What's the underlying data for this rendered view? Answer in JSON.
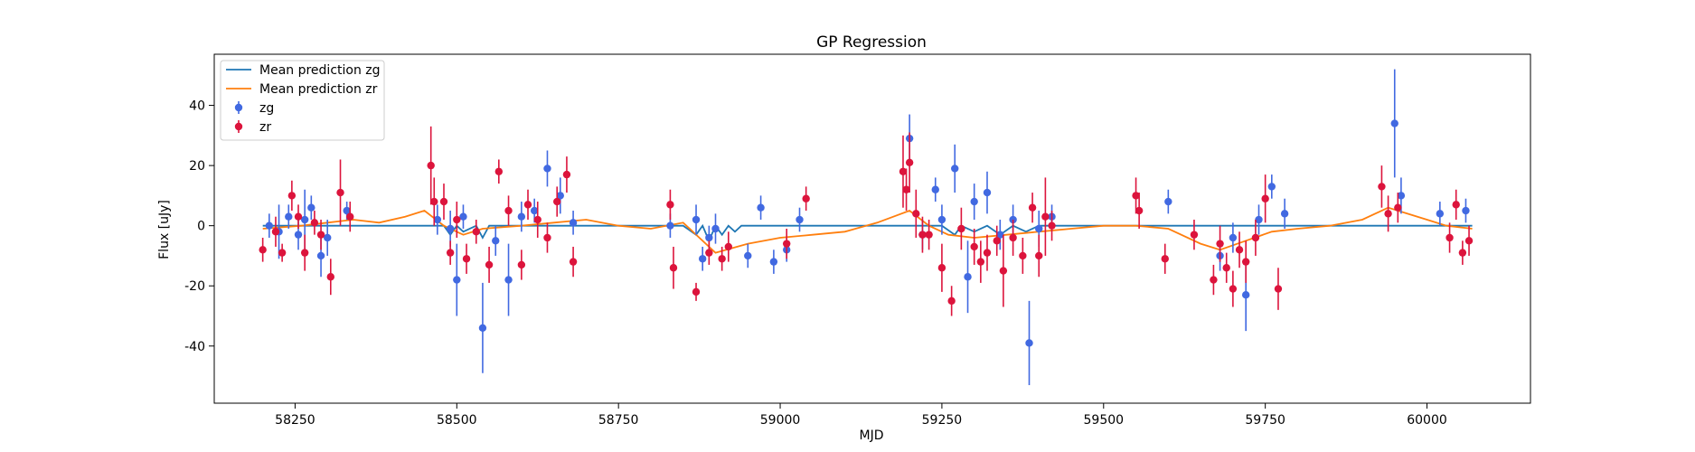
{
  "chart_data": {
    "type": "scatter",
    "title": "GP Regression",
    "xlabel": "MJD",
    "ylabel": "Flux [uJy]",
    "xlim": [
      58125,
      60160
    ],
    "ylim": [
      -59,
      57
    ],
    "xticks": [
      58250,
      58500,
      58750,
      59000,
      59250,
      59500,
      59750,
      60000
    ],
    "yticks": [
      -40,
      -20,
      0,
      20,
      40
    ],
    "grid": false,
    "legend_position": "top-left",
    "series": [
      {
        "name": "Mean prediction zg",
        "kind": "line",
        "color": "#1f77b4",
        "x": [
          58200,
          58350,
          58480,
          58490,
          58500,
          58510,
          58530,
          58540,
          58550,
          58560,
          58700,
          58850,
          58870,
          58880,
          58890,
          58900,
          58910,
          58920,
          58930,
          58940,
          58950,
          59050,
          59250,
          59270,
          59280,
          59300,
          59320,
          59340,
          59360,
          59380,
          59400,
          59600,
          59700,
          59780,
          59790,
          60000,
          60020,
          60040,
          60070
        ],
        "y": [
          0,
          0,
          0,
          -3,
          0,
          -2,
          0,
          -4,
          0,
          0,
          0,
          0,
          -3,
          0,
          -5,
          0,
          -3,
          0,
          -2,
          0,
          0,
          0,
          0,
          -3,
          0,
          -2,
          0,
          -3,
          0,
          -2,
          0,
          0,
          0,
          0,
          0,
          0,
          0,
          0,
          0
        ]
      },
      {
        "name": "Mean prediction zr",
        "kind": "line",
        "color": "#ff7f0e",
        "x": [
          58200,
          58260,
          58300,
          58340,
          58380,
          58420,
          58450,
          58480,
          58510,
          58540,
          58600,
          58650,
          58700,
          58750,
          58800,
          58850,
          58900,
          58950,
          59000,
          59050,
          59100,
          59150,
          59200,
          59230,
          59260,
          59300,
          59350,
          59400,
          59450,
          59500,
          59550,
          59600,
          59650,
          59680,
          59720,
          59760,
          59800,
          59850,
          59900,
          59940,
          59970,
          60000,
          60030,
          60070
        ],
        "y": [
          -1,
          0,
          1,
          2,
          1,
          3,
          5,
          0,
          -3,
          -1,
          0,
          1,
          2,
          0,
          -1,
          1,
          -9,
          -6,
          -4,
          -3,
          -2,
          1,
          5,
          0,
          -3,
          -4,
          -3,
          -2,
          -1,
          0,
          0,
          -1,
          -6,
          -8,
          -5,
          -2,
          -1,
          0,
          2,
          6,
          4,
          2,
          0,
          -1
        ]
      },
      {
        "name": "zg",
        "kind": "errorbar",
        "color": "#4169e1",
        "x": [
          58210,
          58225,
          58240,
          58255,
          58265,
          58275,
          58290,
          58300,
          58330,
          58470,
          58490,
          58500,
          58510,
          58540,
          58560,
          58580,
          58600,
          58620,
          58640,
          58660,
          58680,
          58830,
          58870,
          58880,
          58890,
          58900,
          58950,
          58970,
          58990,
          59010,
          59030,
          59200,
          59220,
          59240,
          59250,
          59270,
          59290,
          59300,
          59320,
          59340,
          59360,
          59385,
          59400,
          59420,
          59600,
          59680,
          59700,
          59720,
          59740,
          59760,
          59780,
          59950,
          59960,
          60020,
          60060
        ],
        "y": [
          0,
          -2,
          3,
          -3,
          2,
          6,
          -10,
          -4,
          5,
          2,
          -1,
          -18,
          3,
          -34,
          -5,
          -18,
          3,
          5,
          19,
          10,
          1,
          0,
          2,
          -11,
          -4,
          -1,
          -10,
          6,
          -12,
          -8,
          2,
          29,
          -3,
          12,
          2,
          19,
          -17,
          8,
          11,
          -3,
          2,
          -39,
          -1,
          3,
          8,
          -10,
          -4,
          -23,
          2,
          13,
          4,
          34,
          10,
          4,
          5
        ],
        "err": [
          4,
          9,
          4,
          5,
          10,
          4,
          7,
          6,
          3,
          5,
          6,
          12,
          4,
          15,
          5,
          12,
          5,
          4,
          6,
          6,
          4,
          4,
          5,
          4,
          4,
          5,
          4,
          4,
          4,
          4,
          4,
          8,
          5,
          4,
          5,
          8,
          12,
          6,
          7,
          5,
          5,
          14,
          6,
          4,
          4,
          5,
          5,
          12,
          5,
          4,
          5,
          18,
          6,
          4,
          4
        ]
      },
      {
        "name": "zr",
        "kind": "errorbar",
        "color": "#dc143c",
        "x": [
          58200,
          58220,
          58230,
          58245,
          58255,
          58265,
          58280,
          58290,
          58305,
          58320,
          58335,
          58460,
          58465,
          58480,
          58490,
          58500,
          58515,
          58530,
          58550,
          58565,
          58580,
          58600,
          58610,
          58625,
          58640,
          58655,
          58670,
          58680,
          58830,
          58835,
          58870,
          58890,
          58910,
          58920,
          59010,
          59040,
          59190,
          59195,
          59200,
          59210,
          59220,
          59230,
          59250,
          59265,
          59280,
          59300,
          59310,
          59320,
          59335,
          59345,
          59360,
          59375,
          59390,
          59400,
          59410,
          59420,
          59550,
          59555,
          59595,
          59640,
          59670,
          59680,
          59690,
          59700,
          59710,
          59720,
          59735,
          59750,
          59770,
          59930,
          59940,
          59955,
          60035,
          60045,
          60055,
          60065
        ],
        "y": [
          -8,
          -2,
          -9,
          10,
          3,
          -9,
          1,
          -3,
          -17,
          11,
          3,
          20,
          8,
          8,
          -9,
          2,
          -11,
          -2,
          -13,
          18,
          5,
          -13,
          7,
          2,
          -4,
          8,
          17,
          -12,
          7,
          -14,
          -22,
          -9,
          -11,
          -7,
          -6,
          9,
          18,
          12,
          21,
          4,
          -3,
          -3,
          -14,
          -25,
          -1,
          -7,
          -12,
          -9,
          -5,
          -15,
          -4,
          -10,
          6,
          -10,
          3,
          0,
          10,
          5,
          -11,
          -3,
          -18,
          -6,
          -14,
          -21,
          -8,
          -12,
          -4,
          9,
          -21,
          13,
          4,
          6,
          -4,
          7,
          -9,
          -5
        ],
        "err": [
          4,
          5,
          3,
          5,
          4,
          6,
          4,
          5,
          6,
          11,
          5,
          13,
          8,
          6,
          4,
          6,
          5,
          4,
          6,
          4,
          5,
          5,
          5,
          6,
          5,
          5,
          6,
          5,
          5,
          7,
          3,
          4,
          4,
          5,
          5,
          4,
          12,
          7,
          10,
          8,
          6,
          5,
          8,
          5,
          7,
          6,
          7,
          6,
          5,
          12,
          6,
          6,
          5,
          7,
          13,
          5,
          6,
          6,
          5,
          5,
          5,
          6,
          5,
          6,
          6,
          7,
          6,
          8,
          7,
          7,
          6,
          5,
          5,
          5,
          4,
          5
        ]
      }
    ]
  }
}
